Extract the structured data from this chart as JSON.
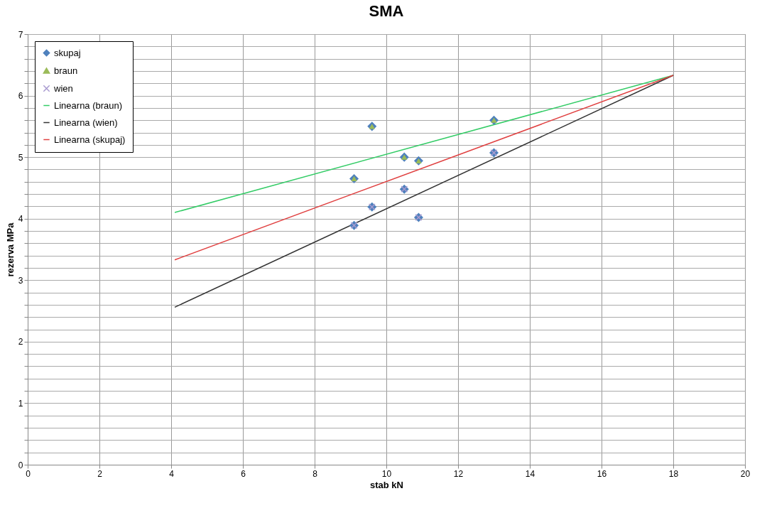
{
  "chart_data": {
    "type": "scatter",
    "title": "SMA",
    "xlabel": "stab kN",
    "ylabel": "rezerva MPa",
    "xlim": [
      0,
      20
    ],
    "xticks": [
      0,
      2,
      4,
      6,
      8,
      10,
      12,
      14,
      16,
      18,
      20
    ],
    "ylim": [
      0,
      7
    ],
    "yticks": [
      0,
      {
        "value": 0.2,
        "label": null
      },
      {
        "value": 0.4,
        "label": null
      },
      {
        "value": 0.6,
        "label": null
      },
      {
        "value": 0.8,
        "label": null
      },
      1,
      {
        "value": 1.2,
        "label": null
      },
      {
        "value": 1.4,
        "label": null
      },
      {
        "value": 1.6,
        "label": null
      },
      {
        "value": 1.8,
        "label": null
      },
      2,
      {
        "value": 2.2,
        "label": null
      },
      {
        "value": 2.4,
        "label": null
      },
      {
        "value": 2.6,
        "label": null
      },
      {
        "value": 2.8,
        "label": null
      },
      3,
      {
        "value": 3.2,
        "label": null
      },
      {
        "value": 3.4,
        "label": null
      },
      {
        "value": 3.6,
        "label": null
      },
      {
        "value": 3.8,
        "label": null
      },
      4,
      {
        "value": 4.2,
        "label": null
      },
      {
        "value": 4.4,
        "label": null
      },
      {
        "value": 4.6,
        "label": null
      },
      {
        "value": 4.8,
        "label": null
      },
      5,
      {
        "value": 5.2,
        "label": null
      },
      {
        "value": 5.4,
        "label": null
      },
      {
        "value": 5.6,
        "label": null
      },
      {
        "value": 5.8,
        "label": null
      },
      6,
      {
        "value": 6.2,
        "label": null
      },
      {
        "value": 6.4,
        "label": null
      },
      {
        "value": 6.6,
        "label": null
      },
      {
        "value": 6.8,
        "label": null
      },
      7
    ],
    "grid": true,
    "legend": "top left",
    "series": [
      {
        "name": "skupaj",
        "type": "scatter",
        "marker": "diamond",
        "color": "#4f81bd",
        "x": [
          9.1,
          9.6,
          10.5,
          10.9,
          13,
          9.1,
          9.6,
          10.5,
          10.9,
          13
        ],
        "values": [
          3.89,
          4.19,
          4.48,
          4.02,
          5.07,
          4.65,
          5.5,
          5.0,
          4.94,
          5.6
        ]
      },
      {
        "name": "braun",
        "type": "scatter",
        "marker": "triangle",
        "color": "#9bbb59",
        "x": [
          9.1,
          9.6,
          10.5,
          10.9,
          13
        ],
        "values": [
          4.65,
          5.5,
          5.0,
          4.94,
          5.6
        ]
      },
      {
        "name": "wien",
        "type": "scatter",
        "marker": "cross",
        "color": "#a99bd0",
        "x": [
          9.1,
          9.6,
          10.5,
          10.9,
          13
        ],
        "values": [
          3.89,
          4.19,
          4.48,
          4.02,
          5.07
        ]
      },
      {
        "name": "Linearna (braun)",
        "type": "line",
        "color": "#33cc66",
        "x": [
          4.1,
          18
        ],
        "values": [
          4.1,
          6.33
        ]
      },
      {
        "name": "Linearna (wien)",
        "type": "line",
        "color": "#333333",
        "x": [
          4.1,
          18
        ],
        "values": [
          2.56,
          6.33
        ]
      },
      {
        "name": "Linearna (skupaj)",
        "type": "line",
        "color": "#e04040",
        "x": [
          4.1,
          18
        ],
        "values": [
          3.33,
          6.33
        ]
      }
    ]
  }
}
